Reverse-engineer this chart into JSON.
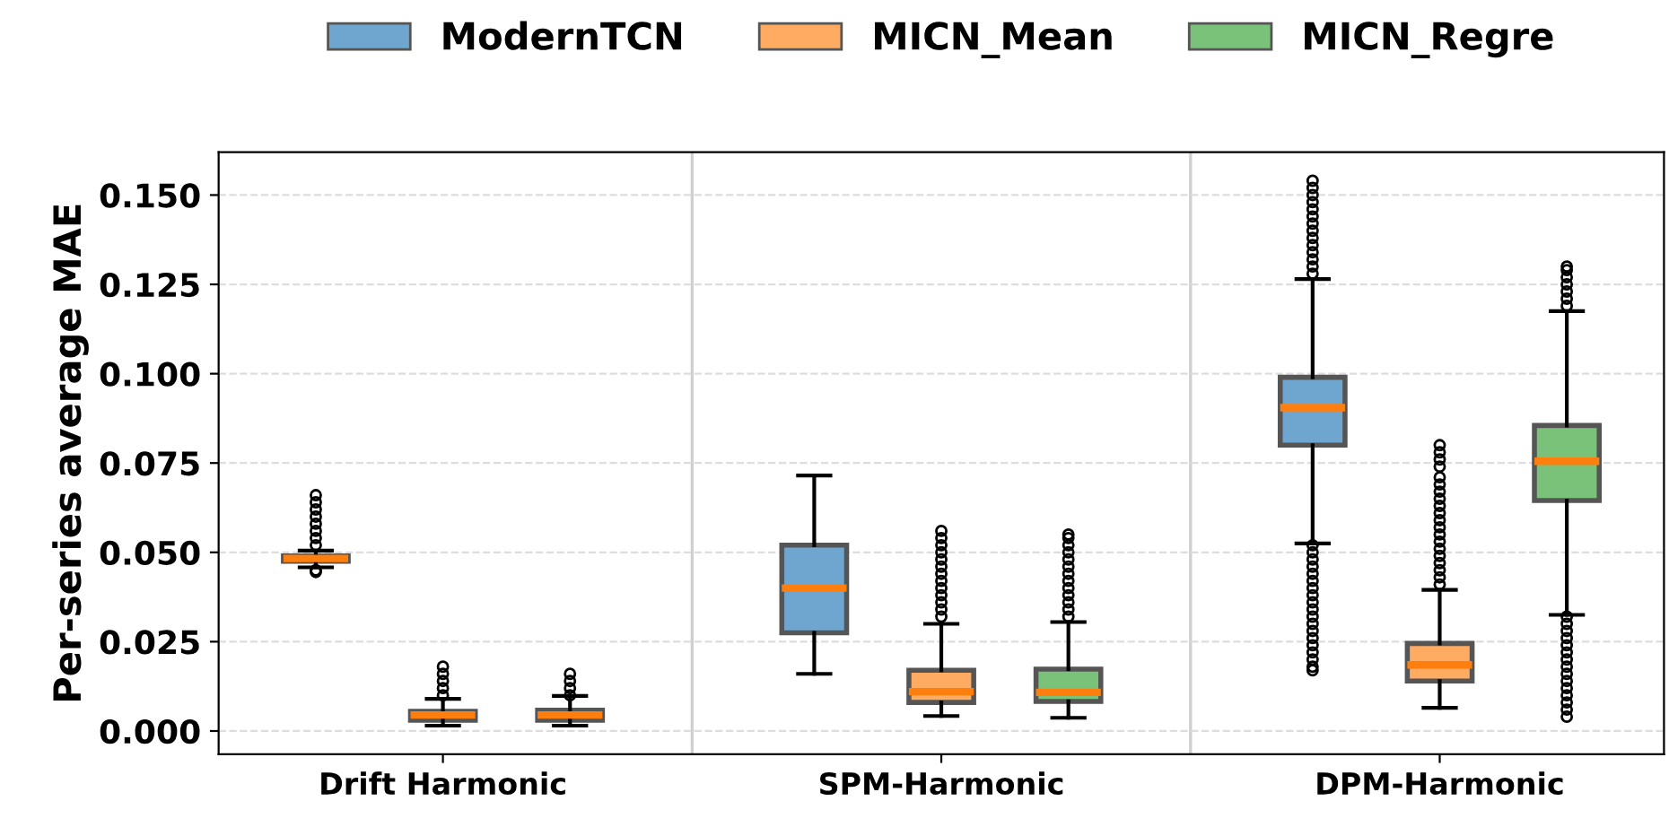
{
  "chart_data": {
    "type": "box",
    "ylabel": "Per-series average MAE",
    "categories": [
      "Drift Harmonic",
      "SPM-Harmonic",
      "DPM-Harmonic"
    ],
    "ylim": [
      -0.0065,
      0.162
    ],
    "yticks": [
      {
        "value": 0,
        "label": "0.000"
      },
      {
        "value": 0.025,
        "label": "0.025"
      },
      {
        "value": 0.05,
        "label": "0.050"
      },
      {
        "value": 0.075,
        "label": "0.075"
      },
      {
        "value": 0.1,
        "label": "0.100"
      },
      {
        "value": 0.125,
        "label": "0.125"
      },
      {
        "value": 0.15,
        "label": "0.150"
      }
    ],
    "grid": "y",
    "legend": "top",
    "marker": "circle",
    "series": [
      {
        "name": "ModernTCN",
        "color": "#6ea6cf",
        "boxes": [
          {
            "low": 0.0458,
            "q1": 0.0475,
            "median": 0.0483,
            "q3": 0.049,
            "high": 0.0505,
            "outliers": [
              0.052,
              0.054,
              0.056,
              0.058,
              0.06,
              0.062,
              0.064,
              0.066,
              0.045,
              0.0445
            ]
          },
          {
            "low": 0.016,
            "q1": 0.0275,
            "median": 0.04,
            "q3": 0.052,
            "high": 0.0715
          },
          {
            "low": 0.0525,
            "q1": 0.08,
            "median": 0.0905,
            "q3": 0.099,
            "high": 0.1265,
            "outliers": [
              0.128,
              0.13,
              0.132,
              0.134,
              0.136,
              0.138,
              0.14,
              0.142,
              0.144,
              0.146,
              0.148,
              0.15,
              0.152,
              0.154,
              0.017,
              0.018,
              0.02,
              0.022,
              0.024,
              0.026,
              0.028,
              0.03,
              0.032,
              0.034,
              0.036,
              0.038,
              0.04,
              0.042,
              0.044,
              0.046,
              0.048,
              0.05,
              0.052
            ]
          }
        ]
      },
      {
        "name": "MICN_Mean",
        "color": "#ffab62",
        "boxes": [
          {
            "low": 0.0015,
            "q1": 0.003,
            "median": 0.0045,
            "q3": 0.0055,
            "high": 0.009,
            "outliers": [
              0.01,
              0.012,
              0.014,
              0.016,
              0.018
            ]
          },
          {
            "low": 0.0042,
            "q1": 0.008,
            "median": 0.011,
            "q3": 0.017,
            "high": 0.03,
            "outliers": [
              0.032,
              0.034,
              0.036,
              0.038,
              0.04,
              0.042,
              0.044,
              0.046,
              0.048,
              0.05,
              0.052,
              0.054,
              0.056
            ]
          },
          {
            "low": 0.0065,
            "q1": 0.014,
            "median": 0.0185,
            "q3": 0.0245,
            "high": 0.0395,
            "outliers": [
              0.041,
              0.043,
              0.045,
              0.047,
              0.049,
              0.051,
              0.053,
              0.055,
              0.057,
              0.059,
              0.061,
              0.063,
              0.065,
              0.067,
              0.069,
              0.071,
              0.074,
              0.076,
              0.078,
              0.08
            ]
          }
        ]
      },
      {
        "name": "MICN_Regre",
        "color": "#7ac27a",
        "boxes": [
          {
            "low": 0.0015,
            "q1": 0.003,
            "median": 0.0045,
            "q3": 0.0058,
            "high": 0.0098,
            "outliers": [
              0.01,
              0.012,
              0.014,
              0.016
            ]
          },
          {
            "low": 0.0037,
            "q1": 0.0083,
            "median": 0.0108,
            "q3": 0.0173,
            "high": 0.0305,
            "outliers": [
              0.032,
              0.034,
              0.036,
              0.038,
              0.04,
              0.042,
              0.044,
              0.046,
              0.048,
              0.05,
              0.052,
              0.054,
              0.055
            ]
          },
          {
            "low": 0.0325,
            "q1": 0.0645,
            "median": 0.0755,
            "q3": 0.0855,
            "high": 0.1175,
            "outliers": [
              0.119,
              0.121,
              0.123,
              0.125,
              0.127,
              0.129,
              0.13,
              0.004,
              0.006,
              0.008,
              0.01,
              0.012,
              0.014,
              0.016,
              0.018,
              0.02,
              0.022,
              0.024,
              0.026,
              0.028,
              0.03,
              0.032
            ]
          }
        ]
      }
    ]
  }
}
